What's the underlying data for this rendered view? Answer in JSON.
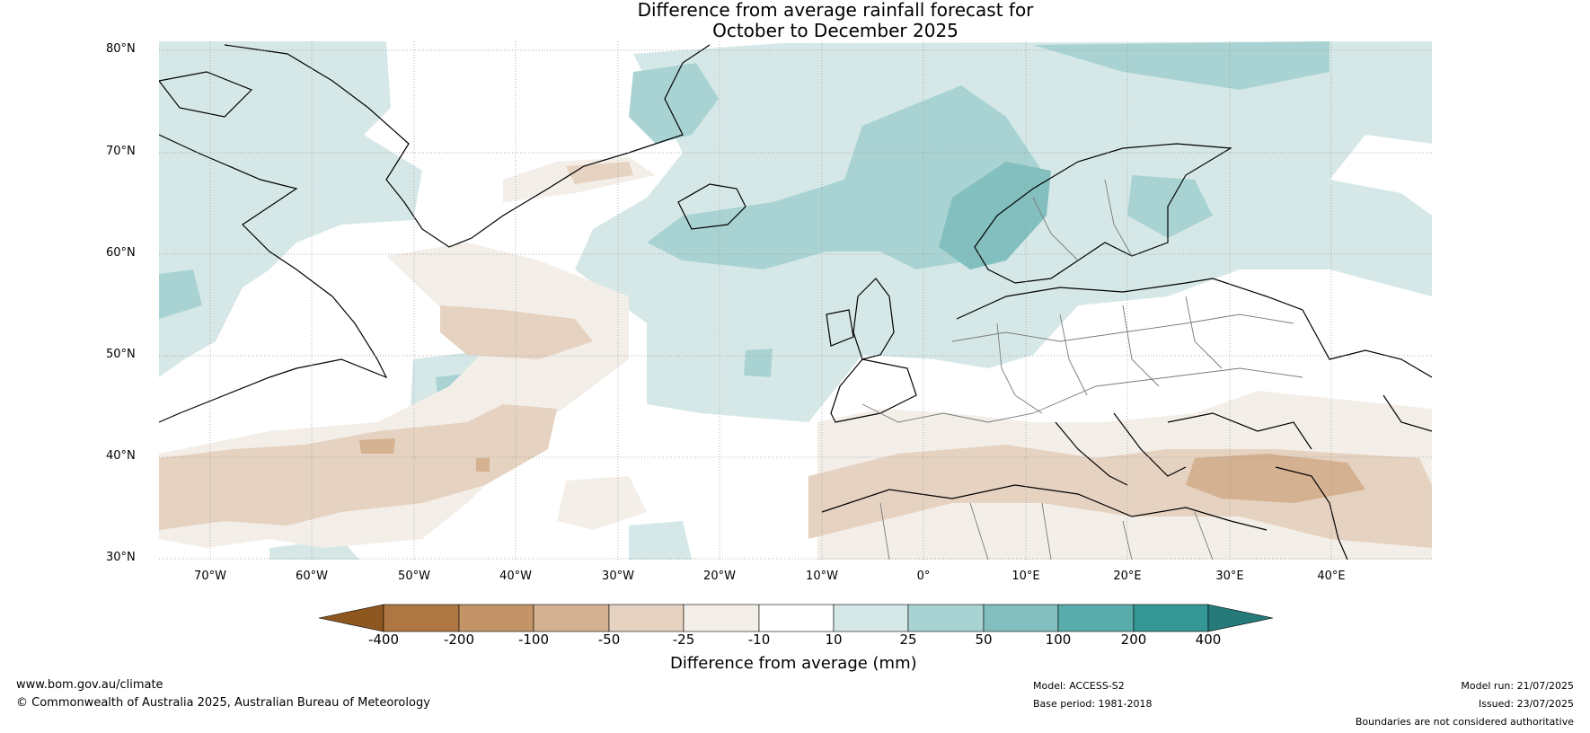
{
  "title": {
    "line1": "Difference from average rainfall forecast for",
    "line2": "October to December 2025"
  },
  "map": {
    "lat_labels": [
      "80°N",
      "70°N",
      "60°N",
      "50°N",
      "40°N",
      "30°N"
    ],
    "lon_labels": [
      "70°W",
      "60°W",
      "50°W",
      "40°W",
      "30°W",
      "20°W",
      "10°W",
      "0°",
      "10°E",
      "20°E",
      "30°E",
      "40°E"
    ]
  },
  "legend": {
    "label": "Difference from average (mm)",
    "ticks": [
      "-400",
      "-200",
      "-100",
      "-50",
      "-25",
      "-10",
      "10",
      "25",
      "50",
      "100",
      "200",
      "400"
    ],
    "colors": [
      "#8f5720",
      "#ae7642",
      "#c39467",
      "#d4b190",
      "#e6d2c0",
      "#f3eee8",
      "#ffffff",
      "#d5e8e7",
      "#a9d3d3",
      "#82bfbe",
      "#5aacaa",
      "#359796",
      "#267a7a"
    ]
  },
  "footer": {
    "website": "www.bom.gov.au/climate",
    "copyright": "© Commonwealth of Australia 2025, Australian Bureau of Meteorology",
    "model": "Model: ACCESS-S2",
    "base_period": "Base period: 1981-2018",
    "model_run": "Model run: 21/07/2025",
    "issued": "Issued: 23/07/2025",
    "disclaimer": "Boundaries are not considered authoritative"
  }
}
